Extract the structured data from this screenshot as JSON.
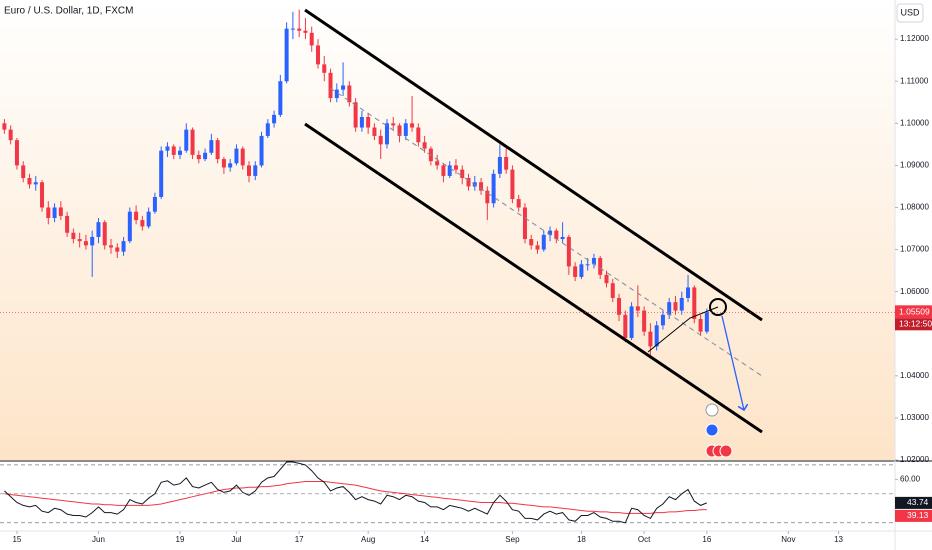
{
  "chart_data": {
    "type": "candlestick",
    "title": "Euro / U.S. Dollar, 1D, FXCM",
    "currency": "USD",
    "countdown": "13:12:50",
    "up_color": "#2962ff",
    "down_color": "#f23645",
    "xlim": [
      -2.7,
      140
    ],
    "xticks": [
      {
        "value": 0,
        "label": "15"
      },
      {
        "value": 13,
        "label": "Jun"
      },
      {
        "value": 26,
        "label": "19"
      },
      {
        "value": 35,
        "label": "Jul"
      },
      {
        "value": 45,
        "label": "17"
      },
      {
        "value": 56,
        "label": "Aug"
      },
      {
        "value": 65,
        "label": "14"
      },
      {
        "value": 79,
        "label": "Sep"
      },
      {
        "value": 90,
        "label": "18"
      },
      {
        "value": 100,
        "label": "Oct"
      },
      {
        "value": 110,
        "label": "16"
      },
      {
        "value": 123,
        "label": "Nov"
      },
      {
        "value": 131,
        "label": "13"
      }
    ],
    "ylim": [
      1.02,
      1.1293
    ],
    "yticks": [
      {
        "value": 1.12,
        "label": "1.12000"
      },
      {
        "value": 1.11,
        "label": "1.11000"
      },
      {
        "value": 1.1,
        "label": "1.10000"
      },
      {
        "value": 1.09,
        "label": "1.09000"
      },
      {
        "value": 1.08,
        "label": "1.08000"
      },
      {
        "value": 1.07,
        "label": "1.07000"
      },
      {
        "value": 1.06,
        "label": "1.06000"
      },
      {
        "value": 1.04,
        "label": "1.04000"
      },
      {
        "value": 1.03,
        "label": "1.03000"
      },
      {
        "value": 1.02,
        "label": "1.02000"
      }
    ],
    "x": [
      -2,
      -1,
      0,
      1,
      2,
      3,
      4,
      5,
      6,
      7,
      8,
      9,
      10,
      11,
      12,
      13,
      14,
      15,
      16,
      17,
      18,
      19,
      20,
      21,
      22,
      23,
      24,
      25,
      26,
      27,
      28,
      29,
      30,
      31,
      32,
      33,
      34,
      35,
      36,
      37,
      38,
      39,
      40,
      41,
      42,
      43,
      44,
      45,
      46,
      47,
      48,
      49,
      50,
      51,
      52,
      53,
      54,
      55,
      56,
      57,
      58,
      59,
      60,
      61,
      62,
      63,
      64,
      65,
      66,
      67,
      68,
      69,
      70,
      71,
      72,
      73,
      74,
      75,
      76,
      77,
      78,
      79,
      80,
      81,
      82,
      83,
      84,
      85,
      86,
      87,
      88,
      89,
      90,
      91,
      92,
      93,
      94,
      95,
      96,
      97,
      98,
      99,
      100,
      101,
      102,
      103,
      104,
      105,
      106,
      107,
      108,
      109,
      110
    ],
    "ohlc": [
      [
        1.1,
        1.101,
        1.0975,
        1.0985
      ],
      [
        1.0985,
        1.0995,
        1.095,
        1.096
      ],
      [
        1.096,
        1.0965,
        1.089,
        1.09
      ],
      [
        1.09,
        1.091,
        1.086,
        1.087
      ],
      [
        1.087,
        1.088,
        1.0845,
        1.0855
      ],
      [
        1.0855,
        1.0875,
        1.084,
        1.086
      ],
      [
        1.086,
        1.0865,
        1.079,
        1.08
      ],
      [
        1.08,
        1.0815,
        1.076,
        1.0775
      ],
      [
        1.0775,
        1.081,
        1.0765,
        1.08
      ],
      [
        1.08,
        1.0815,
        1.077,
        1.078
      ],
      [
        1.078,
        1.079,
        1.073,
        1.074
      ],
      [
        1.074,
        1.075,
        1.0715,
        1.0725
      ],
      [
        1.0725,
        1.074,
        1.0705,
        1.072
      ],
      [
        1.072,
        1.0735,
        1.07,
        1.071
      ],
      [
        1.071,
        1.0745,
        1.0635,
        1.073
      ],
      [
        1.073,
        1.0775,
        1.0715,
        1.0765
      ],
      [
        1.0765,
        1.077,
        1.07,
        1.071
      ],
      [
        1.071,
        1.0725,
        1.069,
        1.0705
      ],
      [
        1.0705,
        1.0715,
        1.068,
        1.0695
      ],
      [
        1.0695,
        1.073,
        1.0685,
        1.072
      ],
      [
        1.072,
        1.08,
        1.0715,
        1.079
      ],
      [
        1.079,
        1.0805,
        1.076,
        1.077
      ],
      [
        1.077,
        1.078,
        1.0745,
        1.0755
      ],
      [
        1.0755,
        1.08,
        1.075,
        1.079
      ],
      [
        1.079,
        1.0835,
        1.0785,
        1.0825
      ],
      [
        1.0825,
        1.0945,
        1.082,
        1.0935
      ],
      [
        1.0935,
        1.0955,
        1.092,
        1.0945
      ],
      [
        1.0945,
        1.095,
        1.0915,
        1.0925
      ],
      [
        1.0925,
        1.0945,
        1.0915,
        1.0935
      ],
      [
        1.0935,
        1.1,
        1.093,
        1.0985
      ],
      [
        1.0985,
        1.099,
        1.0915,
        1.0925
      ],
      [
        1.0925,
        1.0935,
        1.0905,
        1.0915
      ],
      [
        1.0915,
        1.094,
        1.091,
        1.093
      ],
      [
        1.093,
        1.0975,
        1.0925,
        1.096
      ],
      [
        1.096,
        1.0965,
        1.0905,
        1.0915
      ],
      [
        1.0915,
        1.092,
        1.088,
        1.0895
      ],
      [
        1.0895,
        1.0915,
        1.0885,
        1.0905
      ],
      [
        1.0905,
        1.095,
        1.09,
        1.094
      ],
      [
        1.094,
        1.0945,
        1.089,
        1.09
      ],
      [
        1.09,
        1.091,
        1.086,
        1.0875
      ],
      [
        1.0875,
        1.091,
        1.0865,
        1.09
      ],
      [
        1.09,
        1.098,
        1.0895,
        1.097
      ],
      [
        1.097,
        1.101,
        1.0965,
        1.1
      ],
      [
        1.1,
        1.103,
        1.099,
        1.102
      ],
      [
        1.102,
        1.1115,
        1.1015,
        1.11
      ],
      [
        1.11,
        1.124,
        1.1095,
        1.1225
      ],
      [
        1.1225,
        1.1265,
        1.12,
        1.1225
      ],
      [
        1.1225,
        1.127,
        1.1205,
        1.122
      ],
      [
        1.122,
        1.125,
        1.12,
        1.1215
      ],
      [
        1.1215,
        1.123,
        1.117,
        1.1185
      ],
      [
        1.1185,
        1.12,
        1.113,
        1.114
      ],
      [
        1.114,
        1.116,
        1.11,
        1.112
      ],
      [
        1.112,
        1.113,
        1.105,
        1.106
      ],
      [
        1.106,
        1.1095,
        1.105,
        1.108
      ],
      [
        1.108,
        1.1145,
        1.1065,
        1.109
      ],
      [
        1.109,
        1.11,
        1.104,
        1.105
      ],
      [
        1.105,
        1.106,
        1.098,
        1.099
      ],
      [
        1.099,
        1.103,
        1.098,
        1.1015
      ],
      [
        1.1015,
        1.1025,
        1.0975,
        1.099
      ],
      [
        1.099,
        1.1,
        1.096,
        1.097
      ],
      [
        1.097,
        1.0985,
        1.0915,
        1.095
      ],
      [
        1.095,
        1.101,
        1.094,
        1.1
      ],
      [
        1.1,
        1.1015,
        1.0985,
        1.0995
      ],
      [
        1.0995,
        1.1,
        1.0955,
        1.097
      ],
      [
        1.097,
        1.101,
        1.096,
        1.1
      ],
      [
        1.1,
        1.1065,
        1.098,
        1.099
      ],
      [
        1.099,
        1.1,
        1.0945,
        1.0955
      ],
      [
        1.0955,
        1.097,
        1.093,
        1.094
      ],
      [
        1.094,
        1.0945,
        1.09,
        1.091
      ],
      [
        1.091,
        1.0925,
        1.089,
        1.09
      ],
      [
        1.09,
        1.0905,
        1.086,
        1.0875
      ],
      [
        1.0875,
        1.091,
        1.087,
        1.09
      ],
      [
        1.09,
        1.0915,
        1.088,
        1.089
      ],
      [
        1.089,
        1.09,
        1.0855,
        1.087
      ],
      [
        1.087,
        1.088,
        1.084,
        1.085
      ],
      [
        1.085,
        1.0875,
        1.084,
        1.086
      ],
      [
        1.086,
        1.087,
        1.083,
        1.084
      ],
      [
        1.084,
        1.085,
        1.077,
        1.081
      ],
      [
        1.081,
        1.089,
        1.08,
        1.088
      ],
      [
        1.088,
        1.095,
        1.087,
        1.092
      ],
      [
        1.092,
        1.094,
        1.088,
        1.089
      ],
      [
        1.089,
        1.09,
        1.081,
        1.082
      ],
      [
        1.082,
        1.083,
        1.079,
        1.08
      ],
      [
        1.08,
        1.081,
        1.0715,
        1.0725
      ],
      [
        1.0725,
        1.0735,
        1.07,
        1.071
      ],
      [
        1.071,
        1.072,
        1.069,
        1.07
      ],
      [
        1.07,
        1.0745,
        1.0695,
        1.0735
      ],
      [
        1.0735,
        1.0755,
        1.072,
        1.0745
      ],
      [
        1.0745,
        1.075,
        1.0715,
        1.0725
      ],
      [
        1.0725,
        1.0765,
        1.0715,
        1.073
      ],
      [
        1.073,
        1.0735,
        1.064,
        1.066
      ],
      [
        1.066,
        1.067,
        1.0625,
        1.0635
      ],
      [
        1.0635,
        1.0675,
        1.063,
        1.0665
      ],
      [
        1.0665,
        1.068,
        1.065,
        1.0665
      ],
      [
        1.0665,
        1.069,
        1.0655,
        1.068
      ],
      [
        1.068,
        1.0685,
        1.063,
        1.064
      ],
      [
        1.064,
        1.065,
        1.061,
        1.062
      ],
      [
        1.062,
        1.063,
        1.0575,
        1.0585
      ],
      [
        1.0585,
        1.0595,
        1.053,
        1.0545
      ],
      [
        1.0545,
        1.0555,
        1.048,
        1.049
      ],
      [
        1.049,
        1.0575,
        1.0485,
        1.0565
      ],
      [
        1.0565,
        1.0615,
        1.054,
        1.0555
      ],
      [
        1.0555,
        1.0565,
        1.0495,
        1.0505
      ],
      [
        1.0505,
        1.0525,
        1.0448,
        1.047
      ],
      [
        1.047,
        1.053,
        1.046,
        1.052
      ],
      [
        1.052,
        1.0555,
        1.051,
        1.0545
      ],
      [
        1.0545,
        1.0585,
        1.0535,
        1.0575
      ],
      [
        1.0575,
        1.059,
        1.0545,
        1.0555
      ],
      [
        1.0555,
        1.06,
        1.0545,
        1.0585
      ],
      [
        1.0585,
        1.064,
        1.0575,
        1.061
      ],
      [
        1.061,
        1.0615,
        1.0525,
        1.0535
      ],
      [
        1.0535,
        1.0545,
        1.0495,
        1.0505
      ],
      [
        1.0505,
        1.056,
        1.05,
        1.05509
      ]
    ],
    "rsi": {
      "color": "#131722",
      "ylim": [
        25,
        72
      ],
      "yticks": [
        {
          "value": 60,
          "label": "60.00"
        }
      ],
      "levels": [
        70,
        50,
        30
      ],
      "values": [
        52,
        48,
        44,
        42,
        41,
        42,
        38,
        37,
        40,
        39,
        36,
        35,
        35,
        34,
        37,
        41,
        37,
        37,
        36,
        39,
        46,
        44,
        43,
        47,
        50,
        58,
        59,
        56,
        57,
        61,
        55,
        54,
        56,
        58,
        53,
        51,
        52,
        56,
        51,
        49,
        52,
        58,
        61,
        62,
        67,
        72,
        72,
        71,
        70,
        66,
        61,
        58,
        52,
        54,
        55,
        51,
        46,
        48,
        46,
        45,
        43,
        49,
        48,
        46,
        49,
        48,
        45,
        44,
        41,
        41,
        39,
        42,
        41,
        40,
        38,
        40,
        38,
        36,
        44,
        49,
        45,
        39,
        38,
        33,
        33,
        32,
        36,
        38,
        36,
        37,
        32,
        31,
        35,
        35,
        37,
        34,
        33,
        31,
        31,
        30,
        40,
        39,
        35,
        33,
        40,
        43,
        48,
        46,
        50,
        53,
        45,
        42,
        43.74
      ],
      "ma": {
        "color": "#f23645",
        "values": [
          50,
          49.5,
          49,
          48.5,
          48,
          47.5,
          47,
          46.5,
          46,
          45.5,
          45,
          44.5,
          44,
          43.5,
          43,
          43,
          42.5,
          42.5,
          42,
          42,
          42,
          42,
          42,
          42,
          42.5,
          43,
          44,
          45,
          46,
          47,
          48,
          49,
          50,
          51,
          52,
          53,
          53.5,
          54,
          54,
          54.5,
          54.5,
          55,
          55,
          55.5,
          56,
          57,
          57.5,
          58,
          58.5,
          58.5,
          58.5,
          58.5,
          58,
          57.5,
          57,
          56.5,
          56,
          55,
          54,
          53,
          52,
          51.5,
          51,
          50.5,
          50,
          49.5,
          49,
          48.5,
          48,
          47.5,
          47,
          46.5,
          46,
          45.5,
          45,
          44.5,
          44,
          44,
          44,
          44,
          43.5,
          43.5,
          43,
          42.5,
          42,
          41.5,
          41,
          41,
          40.5,
          40,
          39.5,
          39,
          38.5,
          38,
          38,
          37.5,
          37.5,
          37,
          37,
          36.5,
          36.5,
          36.5,
          36.5,
          36.5,
          37,
          37,
          37.5,
          37.5,
          38,
          38.5,
          38.5,
          39,
          39.13
        ]
      }
    }
  }
}
